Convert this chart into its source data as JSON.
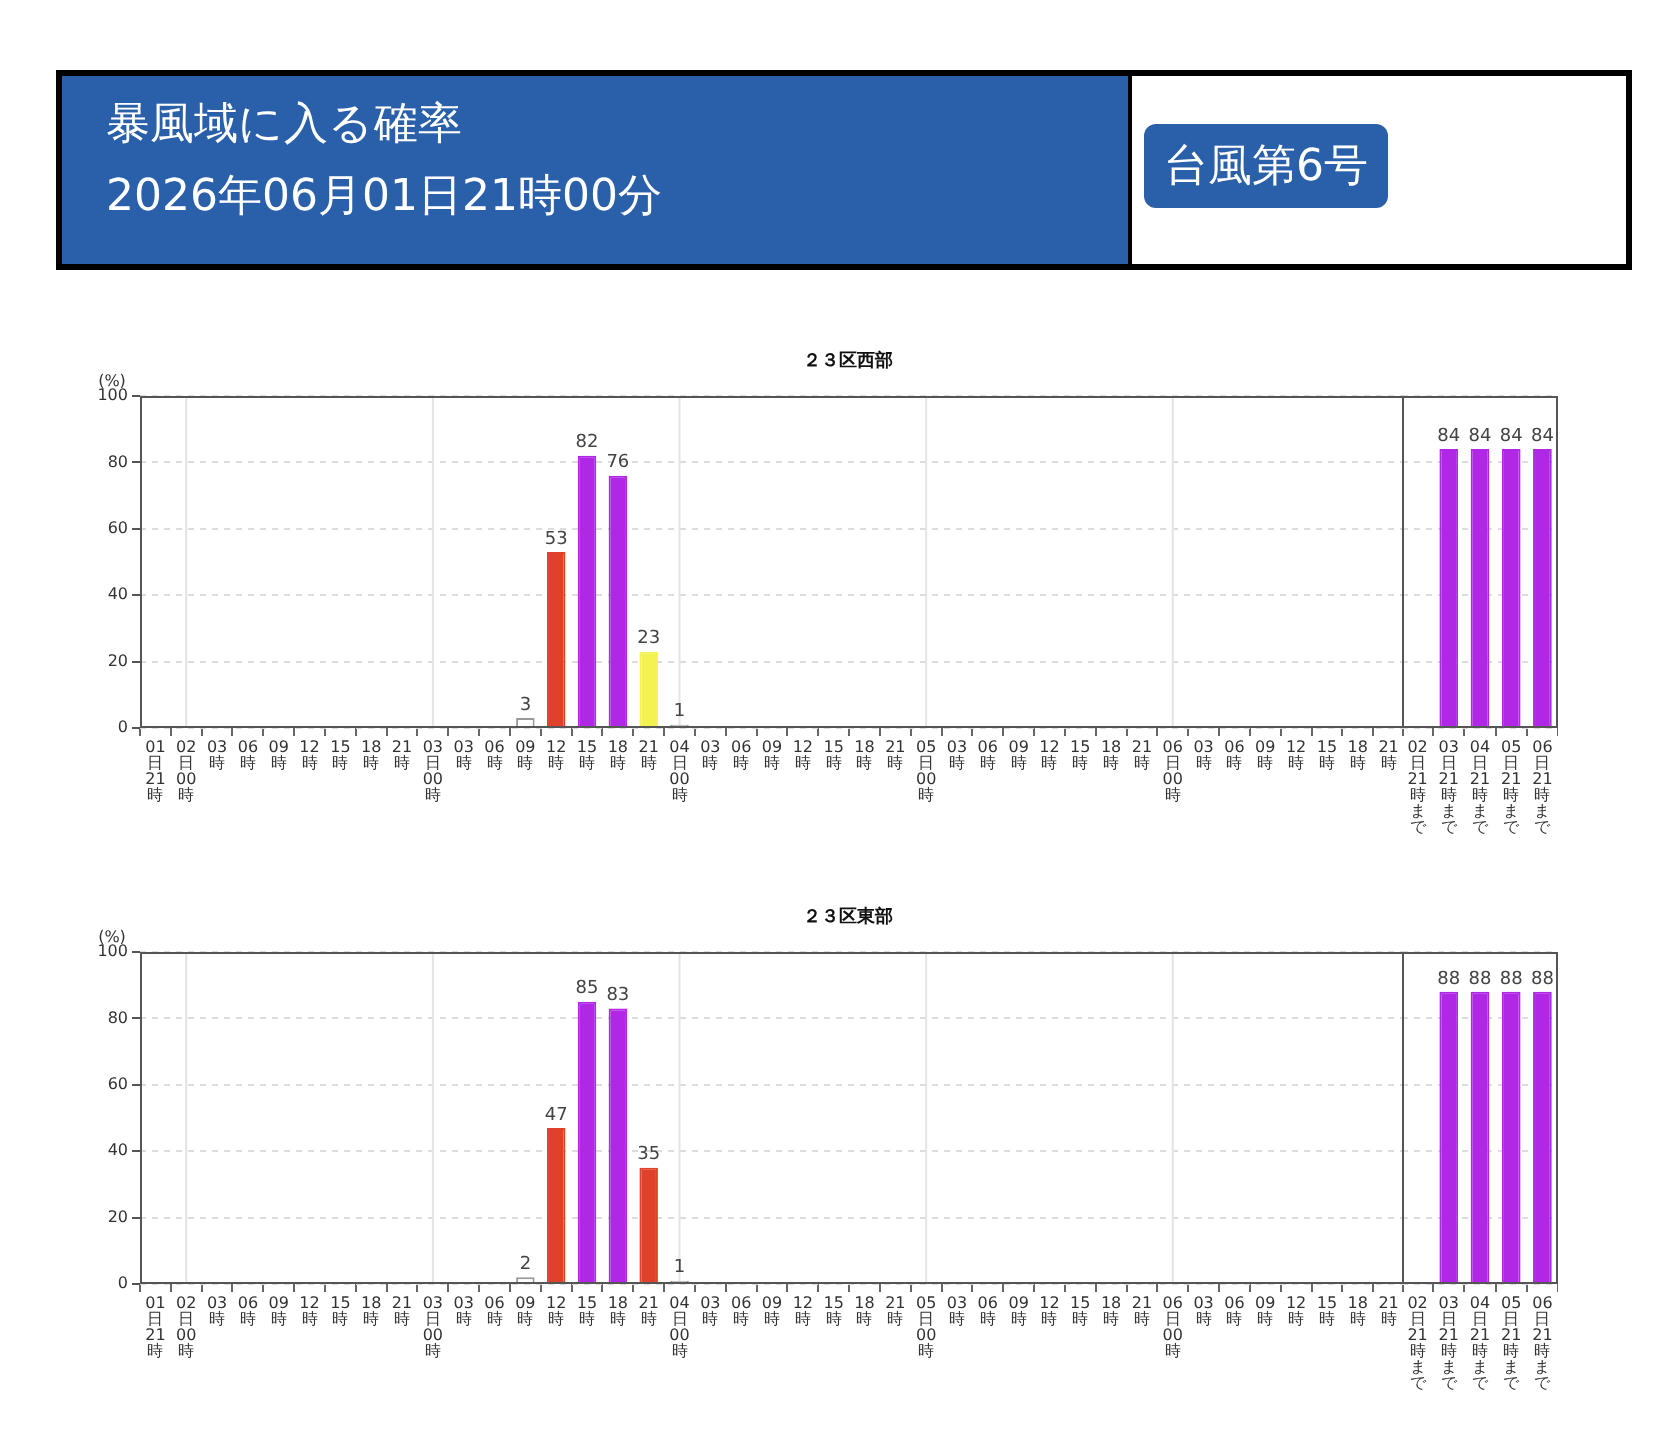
{
  "chart_data": [
    {
      "type": "other",
      "title": "暴風域に入る確率",
      "subtitle": "2026年06月01日21時00分",
      "annotations": [
        "台風第6号"
      ]
    },
    {
      "type": "bar",
      "title": "２３区西部",
      "ylabel": "(%)",
      "categories": [
        "01日21時",
        "02日00時",
        "03時",
        "06時",
        "09時",
        "12時",
        "15時",
        "18時",
        "21時",
        "03日00時",
        "03時",
        "06時",
        "09時",
        "12時",
        "15時",
        "18時",
        "21時",
        "04日00時",
        "03時",
        "06時",
        "09時",
        "12時",
        "15時",
        "18時",
        "21時",
        "05日00時",
        "03時",
        "06時",
        "09時",
        "12時",
        "15時",
        "18時",
        "21時",
        "06日00時",
        "03時",
        "06時",
        "09時",
        "12時",
        "15時",
        "18時",
        "21時"
      ],
      "values": [
        0,
        0,
        0,
        0,
        0,
        0,
        0,
        0,
        0,
        0,
        0,
        0,
        3,
        53,
        82,
        76,
        23,
        1,
        0,
        0,
        0,
        0,
        0,
        0,
        0,
        0,
        0,
        0,
        0,
        0,
        0,
        0,
        0,
        0,
        0,
        0,
        0,
        0,
        0,
        0,
        0
      ],
      "value_labels": [
        null,
        null,
        null,
        null,
        null,
        null,
        null,
        null,
        null,
        null,
        null,
        null,
        "3",
        "53",
        "82",
        "76",
        "23",
        "1",
        null,
        null,
        null,
        null,
        null,
        null,
        null,
        null,
        null,
        null,
        null,
        null,
        null,
        null,
        null,
        null,
        null,
        null,
        null,
        null,
        null,
        null,
        null
      ],
      "colors": [
        "#ffffff",
        "#ffffff",
        "#ffffff",
        "#ffffff",
        "#ffffff",
        "#ffffff",
        "#ffffff",
        "#ffffff",
        "#ffffff",
        "#ffffff",
        "#ffffff",
        "#ffffff",
        "#ffffff",
        "#e0412a",
        "#b027e6",
        "#b027e6",
        "#f4f250",
        "#ffffff",
        "#ffffff",
        "#ffffff",
        "#ffffff",
        "#ffffff",
        "#ffffff",
        "#ffffff",
        "#ffffff",
        "#ffffff",
        "#ffffff",
        "#ffffff",
        "#ffffff",
        "#ffffff",
        "#ffffff",
        "#ffffff",
        "#ffffff",
        "#ffffff",
        "#ffffff",
        "#ffffff",
        "#ffffff",
        "#ffffff",
        "#ffffff",
        "#ffffff",
        "#ffffff"
      ],
      "ylim": [
        0,
        100
      ],
      "yticks": [
        0,
        20,
        40,
        60,
        80,
        100
      ],
      "grid": "y",
      "ref_lines": [
        {
          "axis": "x",
          "value": "02日00時",
          "color": "#e4e4e4"
        },
        {
          "axis": "x",
          "value": "03日00時",
          "color": "#e4e4e4"
        },
        {
          "axis": "x",
          "value": "04日00時",
          "color": "#e4e4e4"
        },
        {
          "axis": "x",
          "value": "05日00時",
          "color": "#e4e4e4"
        },
        {
          "axis": "x",
          "value": "06日00時",
          "color": "#e4e4e4"
        }
      ]
    },
    {
      "type": "bar",
      "categories": [
        "02日21時まで",
        "03日21時まで",
        "04日21時まで",
        "05日21時まで",
        "06日21時まで"
      ],
      "values": [
        0,
        84,
        84,
        84,
        84
      ],
      "value_labels": [
        null,
        "84",
        "84",
        "84",
        "84"
      ],
      "colors": [
        "#ffffff",
        "#b027e6",
        "#b027e6",
        "#b027e6",
        "#b027e6"
      ],
      "ylim": [
        0,
        100
      ],
      "yticks": [
        0,
        20,
        40,
        60,
        80,
        100
      ],
      "grid": "y",
      "tick_labels": "x"
    },
    {
      "type": "bar",
      "title": "２３区東部",
      "ylabel": "(%)",
      "categories": [
        "01日21時",
        "02日00時",
        "03時",
        "06時",
        "09時",
        "12時",
        "15時",
        "18時",
        "21時",
        "03日00時",
        "03時",
        "06時",
        "09時",
        "12時",
        "15時",
        "18時",
        "21時",
        "04日00時",
        "03時",
        "06時",
        "09時",
        "12時",
        "15時",
        "18時",
        "21時",
        "05日00時",
        "03時",
        "06時",
        "09時",
        "12時",
        "15時",
        "18時",
        "21時",
        "06日00時",
        "03時",
        "06時",
        "09時",
        "12時",
        "15時",
        "18時",
        "21時"
      ],
      "values": [
        0,
        0,
        0,
        0,
        0,
        0,
        0,
        0,
        0,
        0,
        0,
        0,
        2,
        47,
        85,
        83,
        35,
        1,
        0,
        0,
        0,
        0,
        0,
        0,
        0,
        0,
        0,
        0,
        0,
        0,
        0,
        0,
        0,
        0,
        0,
        0,
        0,
        0,
        0,
        0,
        0
      ],
      "value_labels": [
        null,
        null,
        null,
        null,
        null,
        null,
        null,
        null,
        null,
        null,
        null,
        null,
        "2",
        "47",
        "85",
        "83",
        "35",
        "1",
        null,
        null,
        null,
        null,
        null,
        null,
        null,
        null,
        null,
        null,
        null,
        null,
        null,
        null,
        null,
        null,
        null,
        null,
        null,
        null,
        null,
        null,
        null
      ],
      "colors": [
        "#ffffff",
        "#ffffff",
        "#ffffff",
        "#ffffff",
        "#ffffff",
        "#ffffff",
        "#ffffff",
        "#ffffff",
        "#ffffff",
        "#ffffff",
        "#ffffff",
        "#ffffff",
        "#ffffff",
        "#e0412a",
        "#b027e6",
        "#b027e6",
        "#e0412a",
        "#ffffff",
        "#ffffff",
        "#ffffff",
        "#ffffff",
        "#ffffff",
        "#ffffff",
        "#ffffff",
        "#ffffff",
        "#ffffff",
        "#ffffff",
        "#ffffff",
        "#ffffff",
        "#ffffff",
        "#ffffff",
        "#ffffff",
        "#ffffff",
        "#ffffff",
        "#ffffff",
        "#ffffff",
        "#ffffff",
        "#ffffff",
        "#ffffff",
        "#ffffff",
        "#ffffff"
      ],
      "ylim": [
        0,
        100
      ],
      "yticks": [
        0,
        20,
        40,
        60,
        80,
        100
      ],
      "grid": "y",
      "ref_lines": [
        {
          "axis": "x",
          "value": "02日00時",
          "color": "#e4e4e4"
        },
        {
          "axis": "x",
          "value": "03日00時",
          "color": "#e4e4e4"
        },
        {
          "axis": "x",
          "value": "04日00時",
          "color": "#e4e4e4"
        },
        {
          "axis": "x",
          "value": "05日00時",
          "color": "#e4e4e4"
        },
        {
          "axis": "x",
          "value": "06日00時",
          "color": "#e4e4e4"
        }
      ]
    },
    {
      "type": "bar",
      "categories": [
        "02日21時まで",
        "03日21時まで",
        "04日21時まで",
        "05日21時まで",
        "06日21時まで"
      ],
      "values": [
        0,
        88,
        88,
        88,
        88
      ],
      "value_labels": [
        null,
        "88",
        "88",
        "88",
        "88"
      ],
      "colors": [
        "#ffffff",
        "#b027e6",
        "#b027e6",
        "#b027e6",
        "#b027e6"
      ],
      "ylim": [
        0,
        100
      ],
      "yticks": [
        0,
        20,
        40,
        60,
        80,
        100
      ],
      "grid": "y",
      "tick_labels": "x"
    }
  ]
}
